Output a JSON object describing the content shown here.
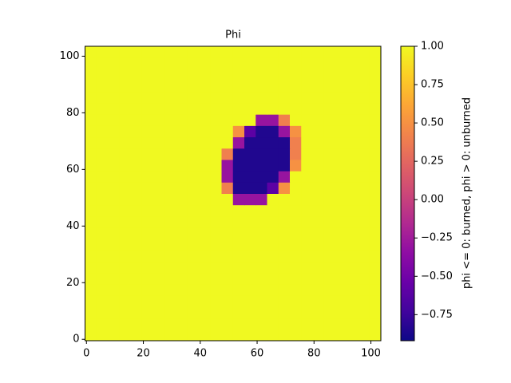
{
  "chart_data": {
    "type": "heatmap",
    "title": "Phi",
    "colormap": "plasma",
    "xlim": [
      -0.5,
      103.5
    ],
    "ylim": [
      -0.5,
      103.5
    ],
    "xticks": [
      0,
      20,
      40,
      60,
      80,
      100
    ],
    "yticks": [
      0,
      20,
      40,
      60,
      80,
      100
    ],
    "zlim": [
      -0.92,
      1.0
    ],
    "zticks": [
      {
        "value": -0.75,
        "label": "−0.75"
      },
      {
        "value": -0.5,
        "label": "−0.50"
      },
      {
        "value": -0.25,
        "label": "−0.25"
      },
      {
        "value": 0,
        "label": "0.00"
      },
      {
        "value": 0.25,
        "label": "0.25"
      },
      {
        "value": 0.5,
        "label": "0.50"
      },
      {
        "value": 0.75,
        "label": "0.75"
      },
      {
        "value": 1.0,
        "label": "1.00"
      }
    ],
    "colorbar_label": "phi <= 0: burned, phi > 0: unburned",
    "z": [
      [
        1,
        1,
        1,
        1,
        1,
        1,
        1,
        1,
        1,
        1,
        1,
        1,
        1,
        1,
        1,
        1,
        1,
        1,
        1,
        1,
        1,
        1,
        1,
        1,
        1,
        1
      ],
      [
        1,
        1,
        1,
        1,
        1,
        1,
        1,
        1,
        1,
        1,
        1,
        1,
        1,
        1,
        1,
        1,
        1,
        1,
        1,
        1,
        1,
        1,
        1,
        1,
        1,
        1
      ],
      [
        1,
        1,
        1,
        1,
        1,
        1,
        1,
        1,
        1,
        1,
        1,
        1,
        1,
        1,
        1,
        1,
        1,
        1,
        1,
        1,
        1,
        1,
        1,
        1,
        1,
        1
      ],
      [
        1,
        1,
        1,
        1,
        1,
        1,
        1,
        1,
        1,
        1,
        1,
        1,
        1,
        1,
        1,
        1,
        1,
        1,
        1,
        1,
        1,
        1,
        1,
        1,
        1,
        1
      ],
      [
        1,
        1,
        1,
        1,
        1,
        1,
        1,
        1,
        1,
        1,
        1,
        1,
        1,
        1,
        1,
        1,
        1,
        1,
        1,
        1,
        1,
        1,
        1,
        1,
        1,
        1
      ],
      [
        1,
        1,
        1,
        1,
        1,
        1,
        1,
        1,
        1,
        1,
        1,
        1,
        1,
        1,
        1,
        1,
        1,
        1,
        1,
        1,
        1,
        1,
        1,
        1,
        1,
        1
      ],
      [
        1,
        1,
        1,
        1,
        1,
        1,
        1,
        1,
        1,
        1,
        1,
        1,
        1,
        1,
        1,
        1,
        1,
        1,
        1,
        1,
        1,
        1,
        1,
        1,
        1,
        1
      ],
      [
        1,
        1,
        1,
        1,
        1,
        1,
        1,
        1,
        1,
        1,
        1,
        1,
        1,
        1,
        1,
        1,
        1,
        1,
        1,
        1,
        1,
        1,
        1,
        1,
        1,
        1
      ],
      [
        1,
        1,
        1,
        1,
        1,
        1,
        1,
        1,
        1,
        1,
        1,
        1,
        1,
        1,
        1,
        1,
        1,
        1,
        1,
        1,
        1,
        1,
        1,
        1,
        1,
        1
      ],
      [
        1,
        1,
        1,
        1,
        1,
        1,
        1,
        1,
        1,
        1,
        1,
        1,
        1,
        1,
        1,
        1,
        1,
        1,
        1,
        1,
        1,
        1,
        1,
        1,
        1,
        1
      ],
      [
        1,
        1,
        1,
        1,
        1,
        1,
        1,
        1,
        1,
        1,
        1,
        1,
        1,
        1,
        1,
        1,
        1,
        1,
        1,
        1,
        1,
        1,
        1,
        1,
        1,
        1
      ],
      [
        1,
        1,
        1,
        1,
        1,
        1,
        1,
        1,
        1,
        1,
        1,
        1,
        1,
        1,
        1,
        1,
        1,
        1,
        1,
        1,
        1,
        1,
        1,
        1,
        1,
        1
      ],
      [
        1,
        1,
        1,
        1,
        1,
        1,
        1,
        1,
        1,
        1,
        1,
        1,
        1,
        -0.3,
        -0.3,
        -0.3,
        1,
        1,
        1,
        1,
        1,
        1,
        1,
        1,
        1,
        1
      ],
      [
        1,
        1,
        1,
        1,
        1,
        1,
        1,
        1,
        1,
        1,
        1,
        1,
        0.4,
        -0.85,
        -0.85,
        -0.85,
        -0.6,
        0.5,
        1,
        1,
        1,
        1,
        1,
        1,
        1,
        1
      ],
      [
        1,
        1,
        1,
        1,
        1,
        1,
        1,
        1,
        1,
        1,
        1,
        1,
        -0.3,
        -0.85,
        -0.85,
        -0.85,
        -0.85,
        -0.3,
        1,
        1,
        1,
        1,
        1,
        1,
        1,
        1
      ],
      [
        1,
        1,
        1,
        1,
        1,
        1,
        1,
        1,
        1,
        1,
        1,
        1,
        -0.3,
        -0.85,
        -0.85,
        -0.85,
        -0.85,
        -0.85,
        0.5,
        1,
        1,
        1,
        1,
        1,
        1,
        1
      ],
      [
        1,
        1,
        1,
        1,
        1,
        1,
        1,
        1,
        1,
        1,
        1,
        1,
        0.4,
        -0.85,
        -0.85,
        -0.85,
        -0.85,
        -0.85,
        0.4,
        1,
        1,
        1,
        1,
        1,
        1,
        1
      ],
      [
        1,
        1,
        1,
        1,
        1,
        1,
        1,
        1,
        1,
        1,
        1,
        1,
        1,
        -0.3,
        -0.85,
        -0.85,
        -0.85,
        -0.85,
        0.4,
        1,
        1,
        1,
        1,
        1,
        1,
        1
      ],
      [
        1,
        1,
        1,
        1,
        1,
        1,
        1,
        1,
        1,
        1,
        1,
        1,
        1,
        0.5,
        -0.6,
        -0.85,
        -0.85,
        -0.3,
        0.5,
        1,
        1,
        1,
        1,
        1,
        1,
        1
      ],
      [
        1,
        1,
        1,
        1,
        1,
        1,
        1,
        1,
        1,
        1,
        1,
        1,
        1,
        1,
        1,
        -0.3,
        -0.3,
        0.4,
        1,
        1,
        1,
        1,
        1,
        1,
        1,
        1
      ],
      [
        1,
        1,
        1,
        1,
        1,
        1,
        1,
        1,
        1,
        1,
        1,
        1,
        1,
        1,
        1,
        1,
        1,
        1,
        1,
        1,
        1,
        1,
        1,
        1,
        1,
        1
      ],
      [
        1,
        1,
        1,
        1,
        1,
        1,
        1,
        1,
        1,
        1,
        1,
        1,
        1,
        1,
        1,
        1,
        1,
        1,
        1,
        1,
        1,
        1,
        1,
        1,
        1,
        1
      ],
      [
        1,
        1,
        1,
        1,
        1,
        1,
        1,
        1,
        1,
        1,
        1,
        1,
        1,
        1,
        1,
        1,
        1,
        1,
        1,
        1,
        1,
        1,
        1,
        1,
        1,
        1
      ],
      [
        1,
        1,
        1,
        1,
        1,
        1,
        1,
        1,
        1,
        1,
        1,
        1,
        1,
        1,
        1,
        1,
        1,
        1,
        1,
        1,
        1,
        1,
        1,
        1,
        1,
        1
      ],
      [
        1,
        1,
        1,
        1,
        1,
        1,
        1,
        1,
        1,
        1,
        1,
        1,
        1,
        1,
        1,
        1,
        1,
        1,
        1,
        1,
        1,
        1,
        1,
        1,
        1,
        1
      ],
      [
        1,
        1,
        1,
        1,
        1,
        1,
        1,
        1,
        1,
        1,
        1,
        1,
        1,
        1,
        1,
        1,
        1,
        1,
        1,
        1,
        1,
        1,
        1,
        1,
        1,
        1
      ]
    ]
  }
}
